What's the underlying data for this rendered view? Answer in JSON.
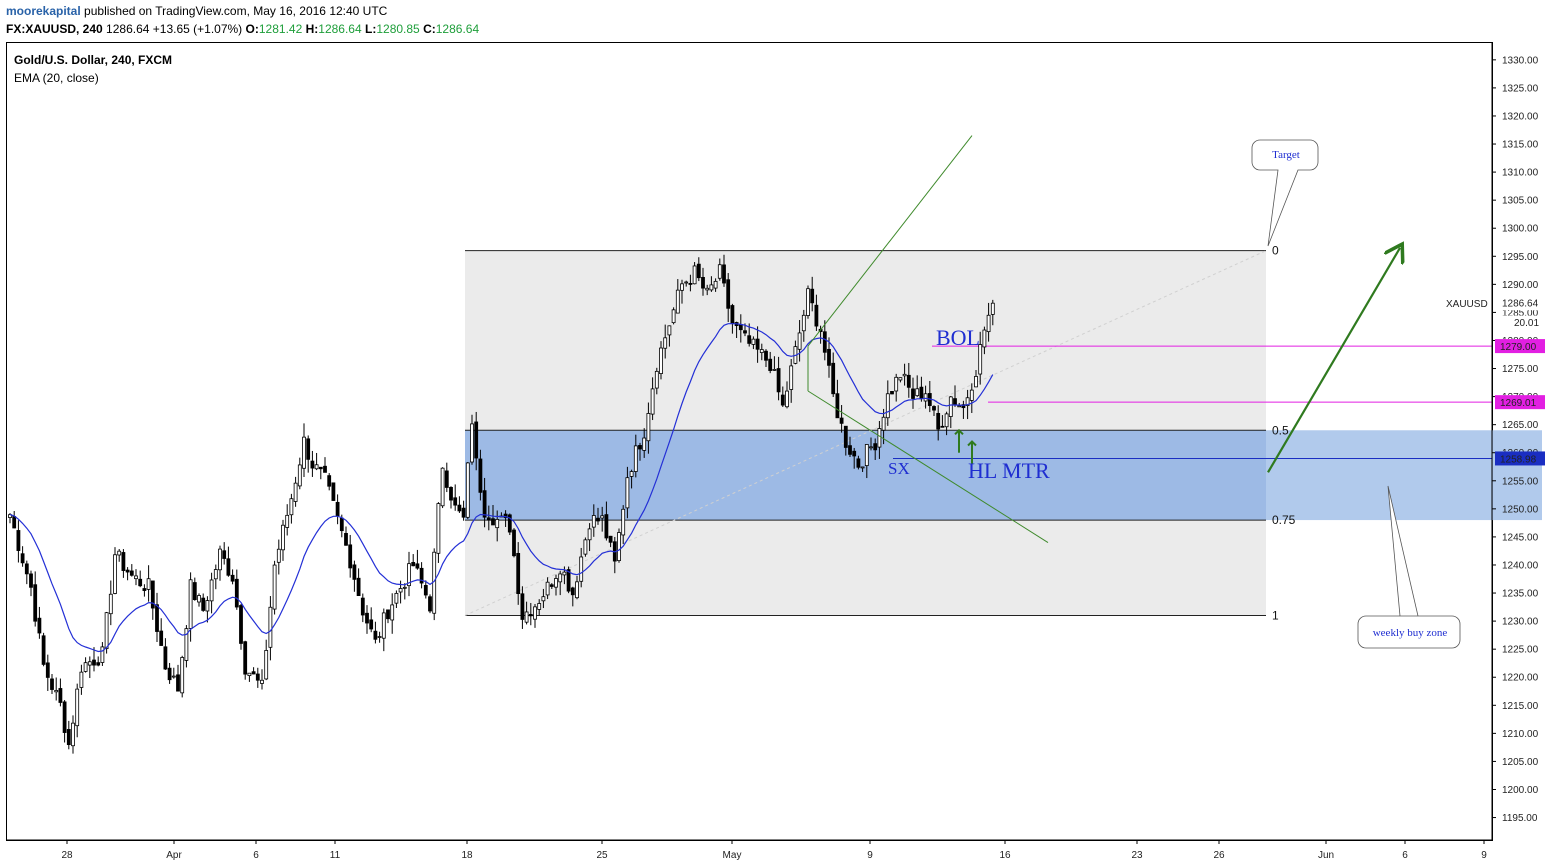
{
  "header": {
    "author": "moorekapital",
    "published": "published on TradingView.com, May 16, 2016 12:40 UTC",
    "symbol": "FX:XAUUSD, 240",
    "last": "1286.64",
    "change": "+13.65 (+1.07%)",
    "o_label": "O:",
    "o_value": "1281.42",
    "h_label": "H:",
    "h_value": "1286.64",
    "l_label": "L:",
    "l_value": "1280.85",
    "c_label": "C:",
    "c_value": "1286.64"
  },
  "legend": {
    "instrument": "Gold/U.S. Dollar, 240, FXCM",
    "indicator": "EMA (20, close)"
  },
  "colors": {
    "up": "#ffffff",
    "down": "#000000",
    "ema": "#2430d6",
    "fib_box": "#ebebeb",
    "buy_zone": "#a9c4ea",
    "magenta": "#e21fe2",
    "arrow_green": "#2f7a1f",
    "annotation_blue": "#1f2ed1",
    "last_badge": "#1a2ec2"
  },
  "chart_data": {
    "type": "candlestick",
    "title": "Gold/U.S. Dollar, 240, FXCM",
    "ylim": [
      1191,
      1333
    ],
    "y_ticks": [
      "1330.00",
      "1325.00",
      "1320.00",
      "1315.00",
      "1310.00",
      "1305.00",
      "1300.00",
      "1295.00",
      "1290.00",
      "1285.00",
      "1280.00",
      "1275.00",
      "1270.00",
      "1265.00",
      "1260.00",
      "1255.00",
      "1250.00",
      "1245.00",
      "1240.00",
      "1235.00",
      "1230.00",
      "1225.00",
      "1220.00",
      "1215.00",
      "1210.00",
      "1205.00",
      "1200.00",
      "1195.00"
    ],
    "x_labels": [
      "28",
      "Apr",
      "6",
      "11",
      "18",
      "25",
      "May",
      "9",
      "16",
      "23",
      "26",
      "Jun",
      "6",
      "9"
    ],
    "symbol_label": "XAUUSD",
    "last_price": "1286.64",
    "partial_label": "20.01",
    "price_badges": [
      {
        "label": "1279.00",
        "color": "#e21fe2"
      },
      {
        "label": "1269.01",
        "color": "#e21fe2"
      },
      {
        "label": "1258.98",
        "color": "#1a2ec2"
      }
    ],
    "fib_levels": [
      {
        "label": "0",
        "price": 1296
      },
      {
        "label": "0.5",
        "price": 1264
      },
      {
        "label": "0.75",
        "price": 1248
      },
      {
        "label": "1",
        "price": 1231
      }
    ],
    "annotations": {
      "target": "Target",
      "weekly_buy_zone": "weekly buy zone",
      "bol": "BOL",
      "sx": "SX",
      "hl_mtr": "HL MTR"
    },
    "anchors": [
      [
        0,
        1249
      ],
      [
        5,
        1236
      ],
      [
        8,
        1222
      ],
      [
        12,
        1215
      ],
      [
        14,
        1208
      ],
      [
        17,
        1222
      ],
      [
        22,
        1224
      ],
      [
        25,
        1242
      ],
      [
        29,
        1238
      ],
      [
        33,
        1236
      ],
      [
        37,
        1222
      ],
      [
        40,
        1218
      ],
      [
        43,
        1236
      ],
      [
        46,
        1232
      ],
      [
        50,
        1242
      ],
      [
        53,
        1238
      ],
      [
        56,
        1222
      ],
      [
        60,
        1218
      ],
      [
        63,
        1240
      ],
      [
        67,
        1252
      ],
      [
        70,
        1262
      ],
      [
        72,
        1258
      ],
      [
        75,
        1255
      ],
      [
        78,
        1248
      ],
      [
        81,
        1241
      ],
      [
        84,
        1232
      ],
      [
        87,
        1226
      ],
      [
        90,
        1232
      ],
      [
        93,
        1236
      ],
      [
        96,
        1240
      ],
      [
        100,
        1233
      ],
      [
        103,
        1258
      ],
      [
        106,
        1250
      ],
      [
        108,
        1248
      ],
      [
        110,
        1266
      ],
      [
        111,
        1258
      ],
      [
        113,
        1250
      ],
      [
        116,
        1248
      ],
      [
        119,
        1247
      ],
      [
        122,
        1231
      ],
      [
        125,
        1233
      ],
      [
        128,
        1236
      ],
      [
        131,
        1240
      ],
      [
        134,
        1235
      ],
      [
        138,
        1248
      ],
      [
        141,
        1248
      ],
      [
        144,
        1240
      ],
      [
        147,
        1256
      ],
      [
        151,
        1264
      ],
      [
        154,
        1276
      ],
      [
        157,
        1283
      ],
      [
        160,
        1290
      ],
      [
        163,
        1292
      ],
      [
        166,
        1288
      ],
      [
        169,
        1292
      ],
      [
        172,
        1283
      ],
      [
        175,
        1280
      ],
      [
        178,
        1278
      ],
      [
        181,
        1276
      ],
      [
        184,
        1268
      ],
      [
        187,
        1278
      ],
      [
        190,
        1288
      ],
      [
        193,
        1282
      ],
      [
        196,
        1270
      ],
      [
        199,
        1262
      ],
      [
        202,
        1258
      ],
      [
        206,
        1262
      ],
      [
        209,
        1270
      ],
      [
        212,
        1274
      ],
      [
        215,
        1270
      ],
      [
        218,
        1271
      ],
      [
        221,
        1264
      ],
      [
        224,
        1270
      ],
      [
        227,
        1268
      ],
      [
        230,
        1275
      ],
      [
        232,
        1282
      ],
      [
        234,
        1286.64
      ]
    ]
  }
}
